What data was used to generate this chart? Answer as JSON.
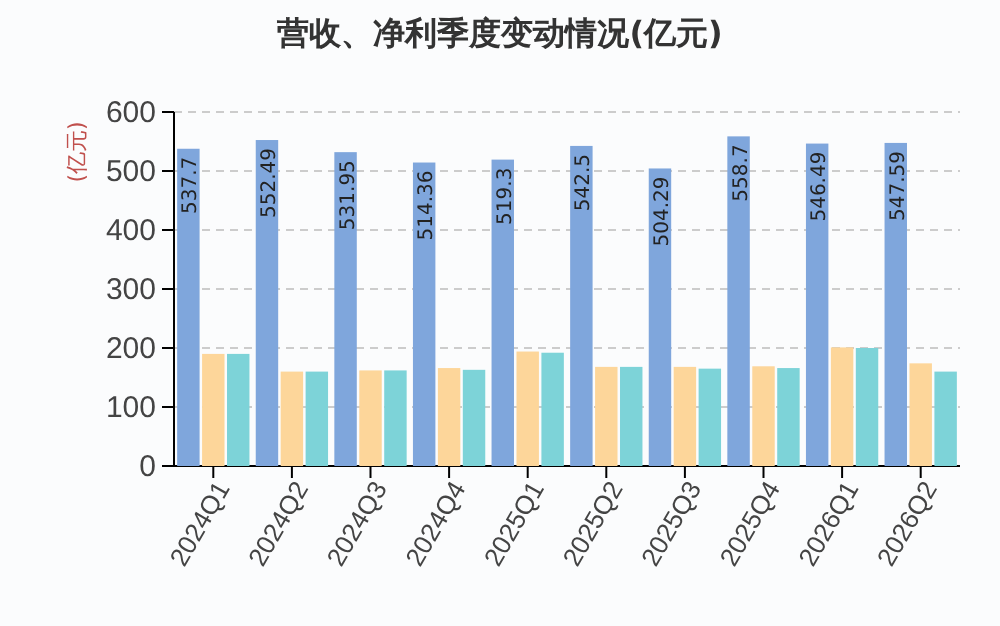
{
  "chart_data": {
    "type": "bar",
    "title": "营收、净利季度变动情况(亿元)",
    "ylabel": "(亿元)",
    "categories": [
      "2024Q1",
      "2024Q2",
      "2024Q3",
      "2024Q4",
      "2025Q1",
      "2025Q2",
      "2025Q3",
      "2025Q4",
      "2026Q1",
      "2026Q2"
    ],
    "series": [
      {
        "color": "#7fa6dc",
        "values": [
          537.7,
          552.49,
          531.95,
          514.36,
          519.3,
          542.5,
          504.29,
          558.7,
          546.49,
          547.59
        ],
        "value_labels": [
          "537.7",
          "552.49",
          "531.95",
          "514.36",
          "519.3",
          "542.5",
          "504.29",
          "558.7",
          "546.49",
          "547.59"
        ]
      },
      {
        "color": "#fdd69a",
        "values": [
          190,
          160,
          162,
          166,
          194,
          168,
          168,
          169,
          201,
          174
        ]
      },
      {
        "color": "#7dd3d8",
        "values": [
          190,
          160,
          162,
          163,
          192,
          168,
          165,
          166,
          200,
          160
        ]
      }
    ],
    "ylim": [
      0,
      600
    ],
    "yticks": [
      0,
      100,
      200,
      300,
      400,
      500,
      600
    ],
    "grid": "y"
  }
}
